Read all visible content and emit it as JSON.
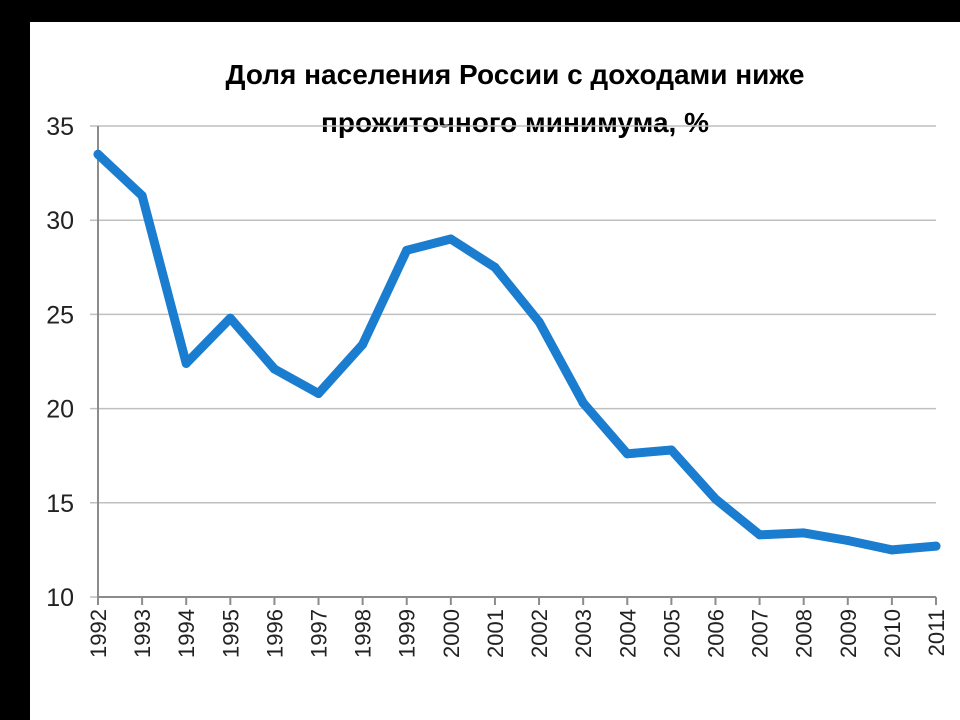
{
  "chart_data": {
    "type": "line",
    "title": "Доля населения России с доходами ниже прожиточного минимума, %",
    "title_lines": [
      "Доля населения России с доходами ниже",
      "прожиточного минимума, %"
    ],
    "x": [
      "1992",
      "1993",
      "1994",
      "1995",
      "1996",
      "1997",
      "1998",
      "1999",
      "2000",
      "2001",
      "2002",
      "2003",
      "2004",
      "2005",
      "2006",
      "2007",
      "2008",
      "2009",
      "2010",
      "2011"
    ],
    "series": [
      {
        "values": [
          33.5,
          31.3,
          22.4,
          24.8,
          22.1,
          20.8,
          23.4,
          28.4,
          29.0,
          27.5,
          24.6,
          20.3,
          17.6,
          17.8,
          15.2,
          13.3,
          13.4,
          13.0,
          12.5,
          12.7
        ],
        "color": "#1a7dcf"
      }
    ],
    "ylim": [
      10,
      35
    ],
    "yticks": [
      "10",
      "15",
      "20",
      "25",
      "30",
      "35"
    ],
    "grid": true,
    "legend": "none"
  }
}
